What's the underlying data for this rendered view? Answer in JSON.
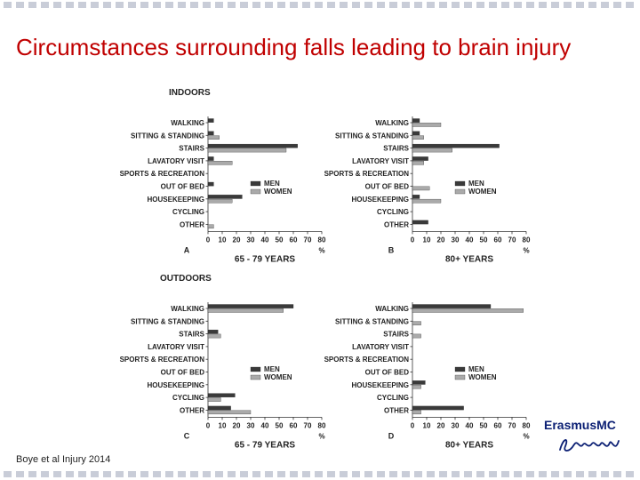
{
  "slide": {
    "title": "Circumstances surrounding falls leading to brain injury",
    "citation": "Boye et al Injury 2014",
    "sections": {
      "indoors": "INDOORS",
      "outdoors": "OUTDOORS"
    },
    "logo": {
      "name": "Erasmus MC",
      "text": "ErasmusMC",
      "signature": "Erafus"
    },
    "colors": {
      "title": "#c00000",
      "men": "#3a3a3a",
      "women": "#aaaaaa",
      "border_dash": "#c9cdd8"
    }
  },
  "chart_data": [
    {
      "type": "bar",
      "orientation": "horizontal",
      "panel": "A",
      "section": "INDOORS",
      "categories": [
        "WALKING",
        "SITTING & STANDING",
        "STAIRS",
        "LAVATORY VISIT",
        "SPORTS & RECREATION",
        "OUT OF BED",
        "HOUSEKEEPING",
        "CYCLING",
        "OTHER"
      ],
      "series": [
        {
          "name": "MEN",
          "values": [
            4,
            4,
            63,
            4,
            0,
            4,
            24,
            0,
            0
          ]
        },
        {
          "name": "WOMEN",
          "values": [
            0,
            8,
            55,
            17,
            0,
            0,
            17,
            0,
            4
          ]
        }
      ],
      "xlabel": "65 - 79 YEARS",
      "unit": "%",
      "xlim": [
        0,
        80
      ],
      "xticks": [
        "0",
        "10",
        "20",
        "30",
        "40",
        "50",
        "60",
        "70",
        "80"
      ],
      "legend": "right",
      "grid": false
    },
    {
      "type": "bar",
      "orientation": "horizontal",
      "panel": "B",
      "section": "INDOORS",
      "categories": [
        "WALKING",
        "SITTING & STANDING",
        "STAIRS",
        "LAVATORY VISIT",
        "SPORTS & RECREATION",
        "OUT OF BED",
        "HOUSEKEEPING",
        "CYCLING",
        "OTHER"
      ],
      "series": [
        {
          "name": "MEN",
          "values": [
            5,
            5,
            61,
            11,
            0,
            0,
            5,
            0,
            11
          ]
        },
        {
          "name": "WOMEN",
          "values": [
            20,
            8,
            28,
            8,
            0,
            12,
            20,
            0,
            0
          ]
        }
      ],
      "xlabel": "80+ YEARS",
      "unit": "%",
      "xlim": [
        0,
        80
      ],
      "xticks": [
        "0",
        "10",
        "20",
        "30",
        "40",
        "50",
        "60",
        "70",
        "80"
      ],
      "legend": "right",
      "grid": false
    },
    {
      "type": "bar",
      "orientation": "horizontal",
      "panel": "C",
      "section": "OUTDOORS",
      "categories": [
        "WALKING",
        "SITTING & STANDING",
        "STAIRS",
        "LAVATORY VISIT",
        "SPORTS & RECREATION",
        "OUT OF BED",
        "HOUSEKEEPING",
        "CYCLING",
        "OTHER"
      ],
      "series": [
        {
          "name": "MEN",
          "values": [
            60,
            0,
            7,
            0,
            0,
            0,
            0,
            19,
            16
          ]
        },
        {
          "name": "WOMEN",
          "values": [
            53,
            0,
            9,
            0,
            0,
            0,
            0,
            9,
            30
          ]
        }
      ],
      "xlabel": "65 - 79 YEARS",
      "unit": "%",
      "xlim": [
        0,
        80
      ],
      "xticks": [
        "0",
        "10",
        "20",
        "30",
        "40",
        "50",
        "60",
        "70",
        "80"
      ],
      "legend": "right",
      "grid": false
    },
    {
      "type": "bar",
      "orientation": "horizontal",
      "panel": "D",
      "section": "OUTDOORS",
      "categories": [
        "WALKING",
        "SITTING & STANDING",
        "STAIRS",
        "LAVATORY VISIT",
        "SPORTS & RECREATION",
        "OUT OF BED",
        "HOUSEKEEPING",
        "CYCLING",
        "OTHER"
      ],
      "series": [
        {
          "name": "MEN",
          "values": [
            55,
            0,
            0,
            0,
            0,
            0,
            9,
            0,
            36
          ]
        },
        {
          "name": "WOMEN",
          "values": [
            78,
            6,
            6,
            0,
            0,
            0,
            6,
            0,
            6
          ]
        }
      ],
      "xlabel": "80+ YEARS",
      "unit": "%",
      "xlim": [
        0,
        80
      ],
      "xticks": [
        "0",
        "10",
        "20",
        "30",
        "40",
        "50",
        "60",
        "70",
        "80"
      ],
      "legend": "right",
      "grid": false
    }
  ]
}
